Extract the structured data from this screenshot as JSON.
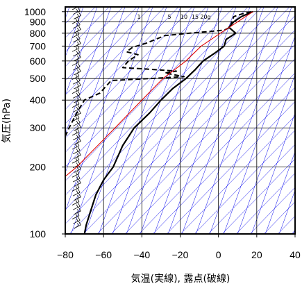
{
  "chart_data": {
    "type": "line",
    "title": "",
    "xlabel": "気温(実線), 露点(破線)",
    "ylabel": "気圧(hPa)",
    "xlim": [
      -80,
      40
    ],
    "ylim": [
      1050,
      100
    ],
    "y_scale": "log",
    "x_ticks": [
      "−80",
      "−60",
      "−40",
      "−20",
      "0",
      "20",
      "40"
    ],
    "x_tick_values": [
      -80,
      -60,
      -40,
      -20,
      0,
      20,
      40
    ],
    "y_ticks": [
      "100",
      "200",
      "300",
      "400",
      "500",
      "600",
      "700",
      "800",
      "900",
      "1000"
    ],
    "y_tick_values": [
      100,
      200,
      300,
      400,
      500,
      600,
      700,
      800,
      900,
      1000
    ],
    "mixing_ratio_labels": [
      "1",
      "5",
      "10",
      "15",
      "20g"
    ],
    "mixing_ratio_values": [
      1,
      5,
      10,
      15,
      20
    ],
    "grid": true,
    "colors": {
      "temperature": "#000000",
      "dewpoint": "#000000",
      "parcel": "#e00000",
      "isotherm": "#0000ee",
      "adiabat": "#0000ee",
      "grid": "#000000"
    },
    "series": [
      {
        "name": "",
        "role": "temperature",
        "style": "solid",
        "points": [
          {
            "t": 18,
            "p": 1000
          },
          {
            "t": 12,
            "p": 950
          },
          {
            "t": 8,
            "p": 900
          },
          {
            "t": 5.5,
            "p": 850
          },
          {
            "t": 9,
            "p": 800
          },
          {
            "t": 4,
            "p": 750
          },
          {
            "t": 3,
            "p": 700
          },
          {
            "t": -2,
            "p": 650
          },
          {
            "t": -8,
            "p": 600
          },
          {
            "t": -12,
            "p": 550
          },
          {
            "t": -17,
            "p": 500
          },
          {
            "t": -24,
            "p": 450
          },
          {
            "t": -30,
            "p": 400
          },
          {
            "t": -36,
            "p": 350
          },
          {
            "t": -44,
            "p": 300
          },
          {
            "t": -50,
            "p": 250
          },
          {
            "t": -55,
            "p": 200
          },
          {
            "t": -60,
            "p": 175
          },
          {
            "t": -64,
            "p": 150
          },
          {
            "t": -67,
            "p": 125
          },
          {
            "t": -69,
            "p": 110
          },
          {
            "t": -70,
            "p": 100
          }
        ]
      },
      {
        "name": "",
        "role": "dewpoint",
        "style": "dashed",
        "points": [
          {
            "t": 17,
            "p": 1000
          },
          {
            "t": 12,
            "p": 975
          },
          {
            "t": 8,
            "p": 950
          },
          {
            "t": 7,
            "p": 900
          },
          {
            "t": 6,
            "p": 850
          },
          {
            "t": 3,
            "p": 825
          },
          {
            "t": -15,
            "p": 800
          },
          {
            "t": -28,
            "p": 780
          },
          {
            "t": -38,
            "p": 720
          },
          {
            "t": -45,
            "p": 690
          },
          {
            "t": -48,
            "p": 660
          },
          {
            "t": -42,
            "p": 640
          },
          {
            "t": -47,
            "p": 600
          },
          {
            "t": -50,
            "p": 560
          },
          {
            "t": -35,
            "p": 550
          },
          {
            "t": -22,
            "p": 540
          },
          {
            "t": -28,
            "p": 530
          },
          {
            "t": -18,
            "p": 510
          },
          {
            "t": -36,
            "p": 500
          },
          {
            "t": -56,
            "p": 490
          },
          {
            "t": -62,
            "p": 430
          },
          {
            "t": -70,
            "p": 400
          },
          {
            "t": -74,
            "p": 350
          },
          {
            "t": -78,
            "p": 300
          },
          {
            "t": -80,
            "p": 275
          }
        ]
      },
      {
        "name": "",
        "role": "parcel",
        "style": "solid",
        "points": [
          {
            "t": 18,
            "p": 1000
          },
          {
            "t": 10,
            "p": 900
          },
          {
            "t": 1,
            "p": 800
          },
          {
            "t": -9,
            "p": 700
          },
          {
            "t": -17,
            "p": 600
          },
          {
            "t": -29,
            "p": 500
          },
          {
            "t": -40,
            "p": 400
          },
          {
            "t": -54,
            "p": 300
          },
          {
            "t": -74,
            "p": 200
          },
          {
            "t": -84,
            "p": 170
          }
        ]
      }
    ]
  }
}
